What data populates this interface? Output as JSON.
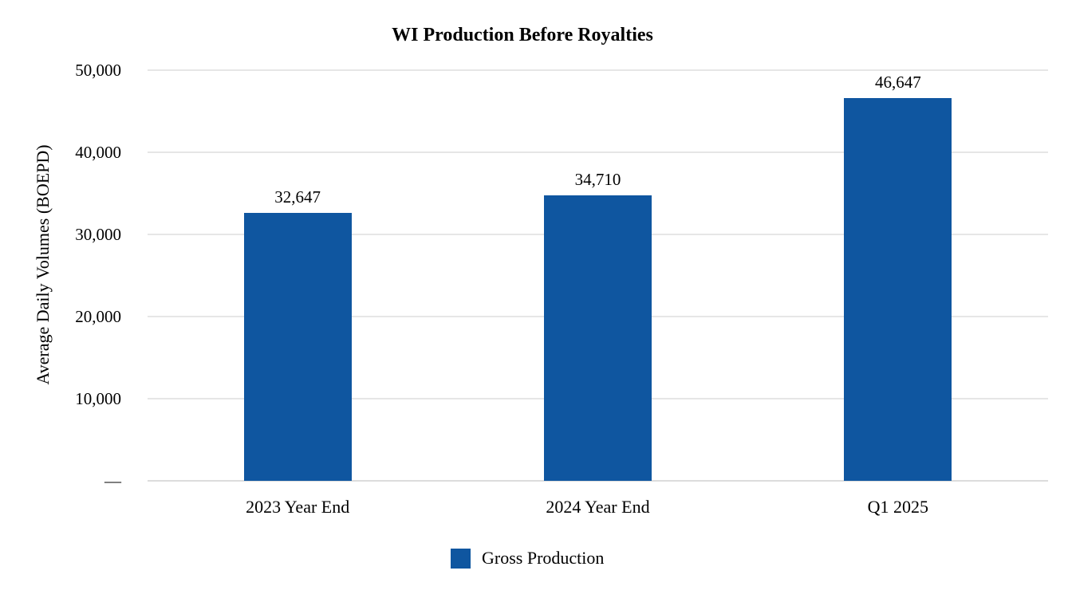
{
  "chart_data": {
    "type": "bar",
    "title": "WI Production Before Royalties",
    "ylabel": "Average Daily Volumes (BOEPD)",
    "xlabel": "",
    "categories": [
      "2023 Year End",
      "2024 Year End",
      "Q1 2025"
    ],
    "series": [
      {
        "name": "Gross Production",
        "values": [
          32647,
          34710,
          46647
        ],
        "labels": [
          "32,647",
          "34,710",
          "46,647"
        ]
      }
    ],
    "ylim": [
      0,
      50000
    ],
    "yticks": [
      {
        "value": 50000,
        "label": "50,000"
      },
      {
        "value": 40000,
        "label": "40,000"
      },
      {
        "value": 30000,
        "label": "30,000"
      },
      {
        "value": 20000,
        "label": "20,000"
      },
      {
        "value": 10000,
        "label": "10,000"
      },
      {
        "value": 0,
        "label": "—"
      }
    ],
    "grid": true,
    "legend_position": "bottom"
  },
  "colors": {
    "bar": "#0F56A0",
    "gridline": "#E6E6E6",
    "axis_line": "#DCDCDC",
    "text": "#000000",
    "background": "#FFFFFF"
  }
}
